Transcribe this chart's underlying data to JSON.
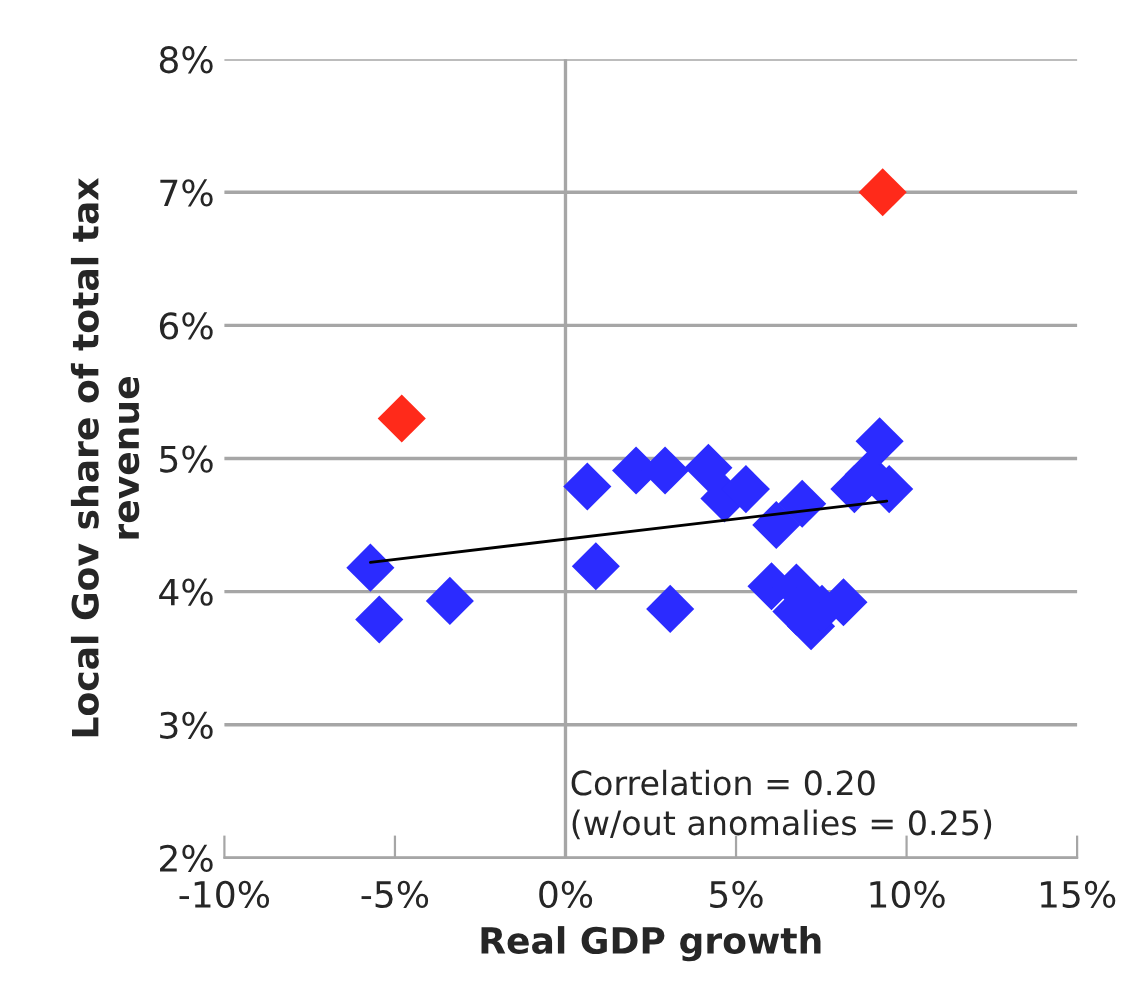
{
  "chart_data": {
    "type": "scatter",
    "xlabel": "Real GDP growth",
    "ylabel": "Local Gov share of total tax\nrevenue",
    "marker": "diamond",
    "grid": "y",
    "xlim": [
      -10,
      15
    ],
    "xticks": [
      {
        "value": -10,
        "label": "-10%"
      },
      {
        "value": -5,
        "label": "-5%"
      },
      {
        "value": 0,
        "label": "0%"
      },
      {
        "value": 5,
        "label": "5%"
      },
      {
        "value": 10,
        "label": "10%"
      },
      {
        "value": 15,
        "label": "15%"
      }
    ],
    "ylim": [
      2,
      8
    ],
    "yticks": [
      {
        "value": 2,
        "label": "2%"
      },
      {
        "value": 3,
        "label": "3%"
      },
      {
        "value": 4,
        "label": "4%"
      },
      {
        "value": 5,
        "label": "5%"
      },
      {
        "value": 6,
        "label": "6%"
      },
      {
        "value": 7,
        "label": "7%"
      },
      {
        "value": 8,
        "label": "8%"
      }
    ],
    "ref_lines": [
      {
        "axis": "x",
        "value": 0,
        "color": "#a6a6a6"
      }
    ],
    "annotations": [
      "Correlation = 0.20\n(w/out anomalies = 0.25)"
    ],
    "series": [
      {
        "color": "#2b2bff",
        "x": [
          -5.72,
          -5.46,
          -3.39,
          0.64,
          0.89,
          2.07,
          2.92,
          3.07,
          4.19,
          4.66,
          5.29,
          6.04,
          6.18,
          6.77,
          6.94,
          6.77,
          7.2,
          7.52,
          8.15,
          8.47,
          8.89,
          9.21,
          9.49
        ],
        "values": [
          4.18,
          3.79,
          3.93,
          4.79,
          4.19,
          4.91,
          4.91,
          3.87,
          4.93,
          4.7,
          4.77,
          4.04,
          4.5,
          4.03,
          4.66,
          3.85,
          3.74,
          3.87,
          3.92,
          4.77,
          4.88,
          5.13,
          4.77
        ]
      },
      {
        "color": "#ff2a1a",
        "x": [
          -4.8,
          9.3
        ],
        "values": [
          5.3,
          7.0
        ]
      },
      {
        "type": "line",
        "color": "#000000",
        "marker": "none",
        "x": [
          -5.72,
          9.42
        ],
        "values": [
          4.22,
          4.68
        ]
      }
    ]
  }
}
